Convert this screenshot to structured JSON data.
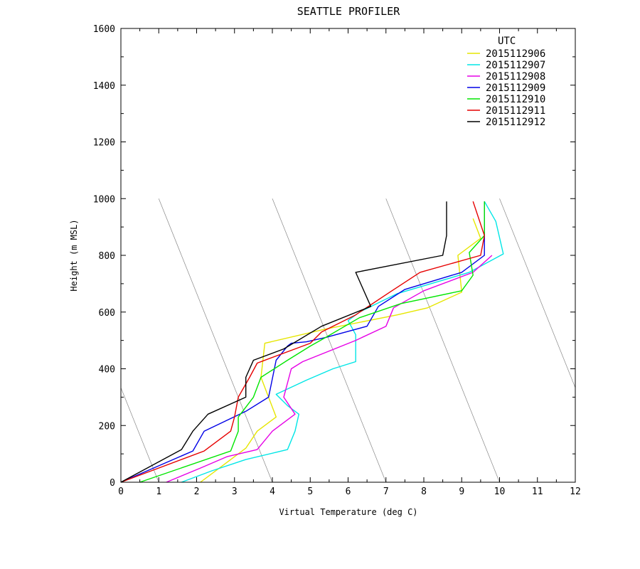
{
  "chart_data": {
    "type": "line",
    "title": "SEATTLE PROFILER",
    "xlabel": "Virtual Temperature (deg C)",
    "ylabel": "Height (m MSL)",
    "xlim": [
      0,
      12
    ],
    "ylim": [
      0,
      1600
    ],
    "xticks": [
      "0",
      "1",
      "2",
      "3",
      "4",
      "5",
      "6",
      "7",
      "8",
      "9",
      "10",
      "11",
      "12"
    ],
    "yticks": [
      "0",
      "200",
      "400",
      "600",
      "800",
      "1000",
      "1200",
      "1400",
      "1600"
    ],
    "legend_title": "UTC",
    "legend_position": "top-right",
    "reference_lines": "dry adiabats",
    "series": [
      {
        "name": "2015112906",
        "color": "#e6e600",
        "points": [
          [
            2.1,
            0
          ],
          [
            2.6,
            50
          ],
          [
            3.0,
            90
          ],
          [
            3.3,
            120
          ],
          [
            3.6,
            180
          ],
          [
            4.1,
            230
          ],
          [
            3.7,
            370
          ],
          [
            3.8,
            490
          ],
          [
            5.4,
            540
          ],
          [
            7.3,
            590
          ],
          [
            8.1,
            615
          ],
          [
            9.0,
            670
          ],
          [
            8.9,
            800
          ],
          [
            9.5,
            860
          ],
          [
            9.3,
            930
          ]
        ]
      },
      {
        "name": "2015112907",
        "color": "#00e6e6",
        "points": [
          [
            1.6,
            0
          ],
          [
            2.4,
            40
          ],
          [
            3.3,
            80
          ],
          [
            4.4,
            115
          ],
          [
            4.6,
            180
          ],
          [
            4.7,
            240
          ],
          [
            4.4,
            270
          ],
          [
            4.1,
            310
          ],
          [
            4.9,
            360
          ],
          [
            5.6,
            400
          ],
          [
            6.2,
            425
          ],
          [
            6.2,
            520
          ],
          [
            6.0,
            570
          ],
          [
            6.3,
            600
          ],
          [
            7.3,
            665
          ],
          [
            9.2,
            740
          ],
          [
            10.1,
            805
          ],
          [
            9.9,
            920
          ],
          [
            9.6,
            990
          ]
        ]
      },
      {
        "name": "2015112908",
        "color": "#e600e6",
        "points": [
          [
            1.2,
            0
          ],
          [
            2.1,
            50
          ],
          [
            2.8,
            90
          ],
          [
            3.6,
            115
          ],
          [
            4.0,
            180
          ],
          [
            4.6,
            240
          ],
          [
            4.3,
            300
          ],
          [
            4.5,
            400
          ],
          [
            4.8,
            425
          ],
          [
            6.2,
            500
          ],
          [
            7.0,
            550
          ],
          [
            7.2,
            615
          ],
          [
            8.0,
            675
          ],
          [
            9.3,
            740
          ],
          [
            9.8,
            800
          ]
        ]
      },
      {
        "name": "2015112909",
        "color": "#0000e6",
        "points": [
          [
            0.0,
            0
          ],
          [
            1.9,
            110
          ],
          [
            2.2,
            180
          ],
          [
            3.3,
            250
          ],
          [
            3.9,
            300
          ],
          [
            4.1,
            430
          ],
          [
            4.4,
            480
          ],
          [
            4.5,
            490
          ],
          [
            4.9,
            495
          ],
          [
            5.4,
            510
          ],
          [
            6.5,
            550
          ],
          [
            6.8,
            620
          ],
          [
            7.5,
            680
          ],
          [
            9.0,
            740
          ],
          [
            9.6,
            800
          ],
          [
            9.6,
            990
          ]
        ]
      },
      {
        "name": "2015112910",
        "color": "#00e600",
        "points": [
          [
            0.5,
            0
          ],
          [
            2.9,
            110
          ],
          [
            3.1,
            180
          ],
          [
            3.1,
            230
          ],
          [
            3.5,
            300
          ],
          [
            3.7,
            370
          ],
          [
            4.4,
            430
          ],
          [
            5.0,
            480
          ],
          [
            5.4,
            510
          ],
          [
            6.3,
            580
          ],
          [
            7.4,
            630
          ],
          [
            9.0,
            675
          ],
          [
            9.3,
            730
          ],
          [
            9.2,
            810
          ],
          [
            9.6,
            870
          ],
          [
            9.6,
            990
          ]
        ]
      },
      {
        "name": "2015112911",
        "color": "#e60000",
        "points": [
          [
            0.0,
            0
          ],
          [
            2.2,
            110
          ],
          [
            2.9,
            180
          ],
          [
            3.0,
            230
          ],
          [
            3.1,
            300
          ],
          [
            3.4,
            370
          ],
          [
            3.6,
            420
          ],
          [
            5.0,
            490
          ],
          [
            5.3,
            530
          ],
          [
            6.2,
            590
          ],
          [
            7.1,
            670
          ],
          [
            7.9,
            740
          ],
          [
            9.5,
            800
          ],
          [
            9.6,
            870
          ],
          [
            9.3,
            990
          ]
        ]
      },
      {
        "name": "2015112912",
        "color": "#000000",
        "points": [
          [
            0.0,
            0
          ],
          [
            1.6,
            115
          ],
          [
            1.9,
            180
          ],
          [
            2.3,
            240
          ],
          [
            3.3,
            300
          ],
          [
            3.3,
            370
          ],
          [
            3.5,
            430
          ],
          [
            4.3,
            470
          ],
          [
            5.3,
            550
          ],
          [
            6.6,
            620
          ],
          [
            6.4,
            680
          ],
          [
            6.2,
            740
          ],
          [
            8.5,
            800
          ],
          [
            8.6,
            870
          ],
          [
            8.6,
            990
          ]
        ]
      }
    ]
  }
}
